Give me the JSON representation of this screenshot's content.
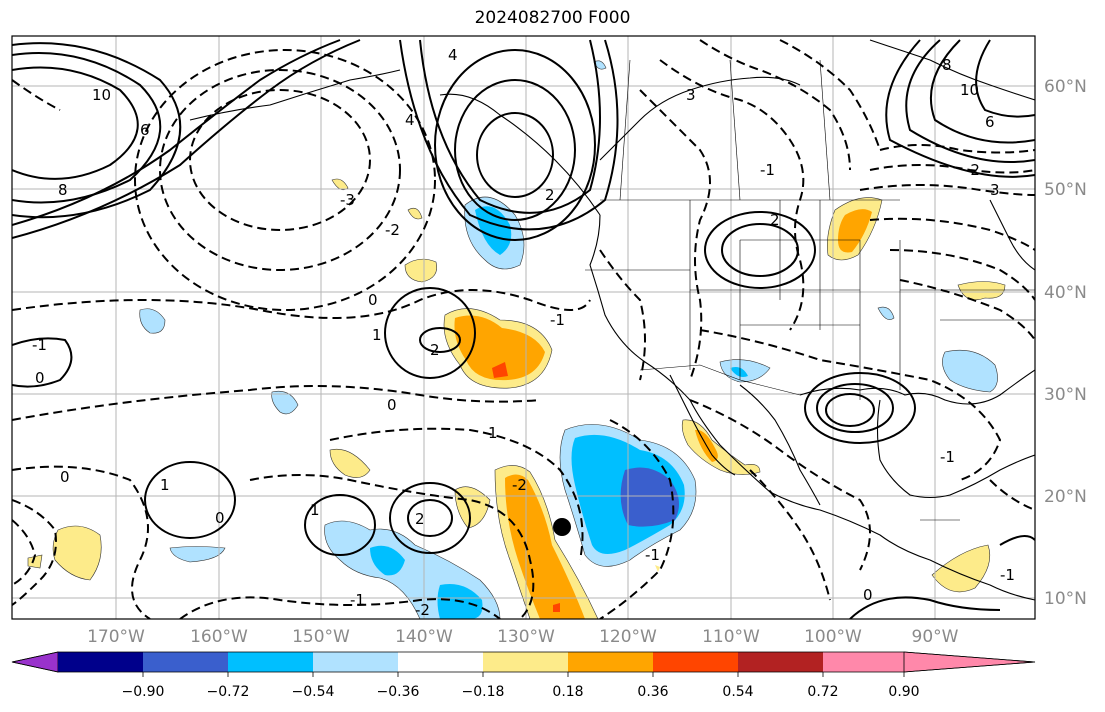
{
  "title": "2024082700 F000",
  "lat_labels": [
    "60°N",
    "50°N",
    "40°N",
    "30°N",
    "20°N",
    "10°N"
  ],
  "lon_labels": [
    "170°W",
    "160°W",
    "150°W",
    "140°W",
    "130°W",
    "120°W",
    "110°W",
    "100°W",
    "90°W"
  ],
  "colorbar": {
    "tick_labels": [
      "−0.90",
      "−0.72",
      "−0.54",
      "−0.36",
      "−0.18",
      "0.18",
      "0.36",
      "0.54",
      "0.72",
      "0.90"
    ],
    "colors": [
      "#9932cc",
      "#00008b",
      "#3a5fcd",
      "#00bfff",
      "#b0e2ff",
      "#ffffff",
      "#fdeb8a",
      "#ffa500",
      "#ff4500",
      "#b22222",
      "#ff88aa"
    ]
  },
  "contour_labels": [
    "10",
    "8",
    "6",
    "4",
    "2",
    "0",
    "-1",
    "-2",
    "-3",
    "1",
    "2",
    "0",
    "4",
    "6",
    "8",
    "10",
    "2",
    "-1",
    "-2",
    "3",
    "1",
    "-1",
    "0",
    "-1",
    "2",
    "1",
    "0",
    "-1",
    "1",
    "-2",
    "0",
    "-2",
    "-1",
    "0",
    "-1",
    "3"
  ]
}
